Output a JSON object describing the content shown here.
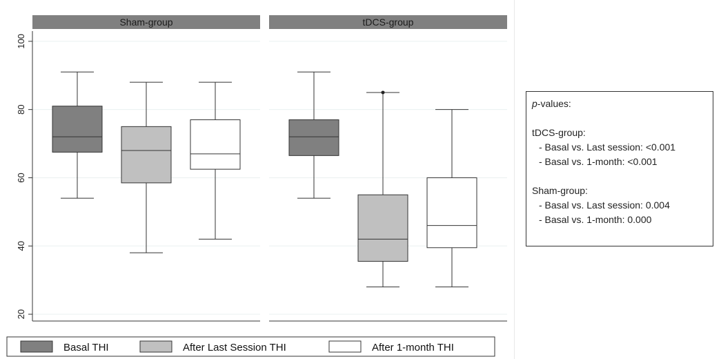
{
  "chart_data": {
    "type": "box",
    "y_axis": {
      "ylim": [
        18,
        103
      ],
      "ticks": [
        20,
        40,
        60,
        80,
        100
      ],
      "grid": true
    },
    "panels": [
      {
        "title": "Sham-group",
        "boxes": [
          {
            "series": "Basal THI",
            "whisker_low": 54,
            "q1": 67.5,
            "median": 72,
            "q3": 81,
            "whisker_high": 91,
            "outliers": []
          },
          {
            "series": "After Last Session THI",
            "whisker_low": 38,
            "q1": 58.5,
            "median": 68,
            "q3": 75,
            "whisker_high": 88,
            "outliers": []
          },
          {
            "series": "After 1-month THI",
            "whisker_low": 42,
            "q1": 62.5,
            "median": 67,
            "q3": 77,
            "whisker_high": 88,
            "outliers": []
          }
        ]
      },
      {
        "title": "tDCS-group",
        "boxes": [
          {
            "series": "Basal THI",
            "whisker_low": 54,
            "q1": 66.5,
            "median": 72,
            "q3": 77,
            "whisker_high": 91,
            "outliers": []
          },
          {
            "series": "After Last Session THI",
            "whisker_low": 28,
            "q1": 35.5,
            "median": 42,
            "q3": 55,
            "whisker_high": 85,
            "outliers": [
              85
            ]
          },
          {
            "series": "After 1-month THI",
            "whisker_low": 28,
            "q1": 39.5,
            "median": 46,
            "q3": 60,
            "whisker_high": 80,
            "outliers": []
          }
        ]
      }
    ],
    "legend": {
      "placement": "bottom",
      "items": [
        {
          "label": "Basal THI",
          "color": "#808080"
        },
        {
          "label": "After Last Session THI",
          "color": "#c0c0c0"
        },
        {
          "label": "After 1-month THI",
          "color": "#ffffff"
        }
      ]
    }
  },
  "pvalues_box": {
    "title_italic": "p",
    "title_rest": "-values:",
    "groups": [
      {
        "name": "tDCS-group:",
        "lines": [
          "- Basal vs. Last session: <0.001",
          "- Basal vs. 1-month: <0.001"
        ]
      },
      {
        "name": "Sham-group:",
        "lines": [
          "- Basal vs. Last session: 0.004",
          "- Basal vs. 1-month: 0.000"
        ]
      }
    ]
  },
  "colors": {
    "strip": "#808080",
    "grid": "#eaf0f0",
    "stroke": "#333333"
  }
}
